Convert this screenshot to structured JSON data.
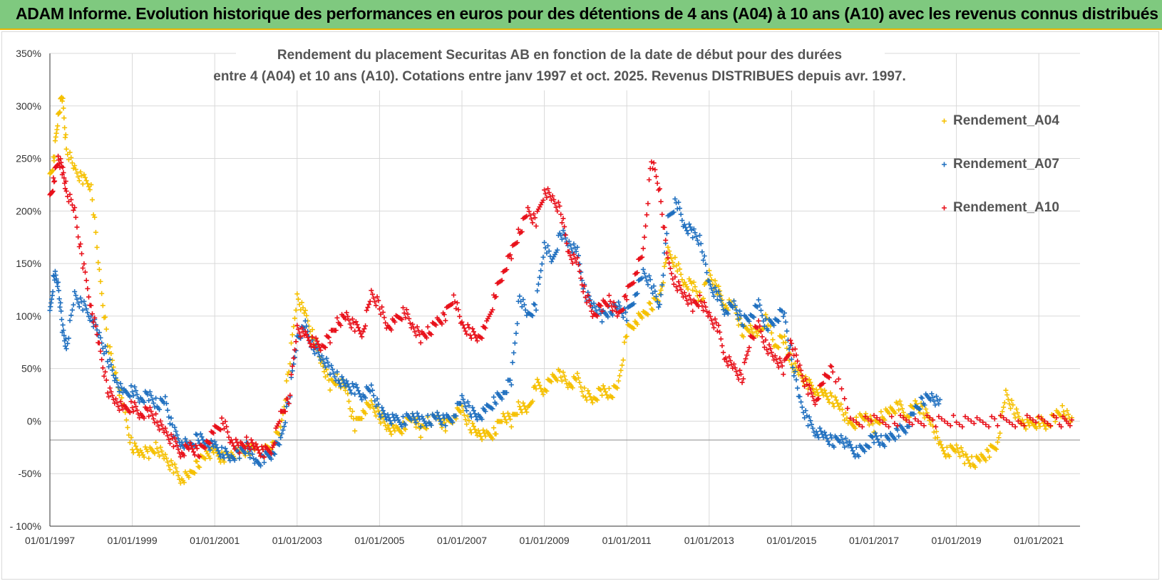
{
  "banner": {
    "title": "ADAM Informe. Evolution historique des performances en euros pour des détentions de 4 ans (A04) à 10 ans (A10) avec les revenus connus distribués"
  },
  "chart_data": {
    "type": "scatter",
    "title_lines": [
      "Rendement du placement Securitas AB en fonction de la date de début pour des durées",
      "entre 4 (A04) et 10 ans (A10). Cotations entre janv 1997 et oct. 2025. Revenus DISTRIBUES depuis avr. 1997."
    ],
    "xlabel": "",
    "ylabel": "",
    "x_ticks": [
      "01/01/1997",
      "01/01/1999",
      "01/01/2001",
      "01/01/2003",
      "01/01/2005",
      "01/01/2007",
      "01/01/2009",
      "01/01/2011",
      "01/01/2013",
      "01/01/2015",
      "01/01/2017",
      "01/01/2019",
      "01/01/2021"
    ],
    "y_ticks": [
      "350%",
      "300%",
      "250%",
      "200%",
      "150%",
      "100%",
      "50%",
      "0%",
      "-50%",
      "- 100%"
    ],
    "xlim": [
      1997.0,
      2022.0
    ],
    "ylim": [
      -100,
      350
    ],
    "legend_position": "right",
    "marker": "+",
    "series": [
      {
        "name": "Rendement_A04",
        "color": "#f5c000",
        "x": [
          1997.0,
          1997.1,
          1997.2,
          1997.3,
          1997.4,
          1997.6,
          1997.8,
          1998.0,
          1998.2,
          1998.4,
          1998.6,
          1998.8,
          1999.0,
          1999.2,
          1999.4,
          1999.6,
          1999.8,
          2000.0,
          2000.2,
          2000.4,
          2000.6,
          2000.8,
          2001.0,
          2001.2,
          2001.4,
          2001.6,
          2001.8,
          2002.0,
          2002.2,
          2002.4,
          2002.6,
          2002.8,
          2003.0,
          2003.2,
          2003.4,
          2003.6,
          2003.8,
          2004.0,
          2004.2,
          2004.4,
          2004.6,
          2004.8,
          2005.0,
          2005.2,
          2005.4,
          2005.6,
          2005.8,
          2006.0,
          2006.2,
          2006.4,
          2006.6,
          2006.8,
          2007.0,
          2007.2,
          2007.4,
          2007.6,
          2007.8,
          2008.0,
          2008.2,
          2008.4,
          2008.6,
          2008.8,
          2009.0,
          2009.2,
          2009.4,
          2009.6,
          2009.8,
          2010.0,
          2010.2,
          2010.4,
          2010.6,
          2010.8,
          2011.0,
          2011.2,
          2011.4,
          2011.6,
          2011.8,
          2012.0,
          2012.2,
          2012.4,
          2012.6,
          2012.8,
          2013.0,
          2013.2,
          2013.4,
          2013.6,
          2013.8,
          2014.0,
          2014.2,
          2014.4,
          2014.6,
          2014.8,
          2015.0,
          2015.2,
          2015.4,
          2015.6,
          2015.8,
          2016.0,
          2016.2,
          2016.4,
          2016.6,
          2016.8,
          2017.0,
          2017.2,
          2017.4,
          2017.6,
          2017.8,
          2018.0,
          2018.2,
          2018.4,
          2018.6,
          2018.8,
          2019.0,
          2019.2,
          2019.4,
          2019.6,
          2019.8,
          2020.0,
          2020.2,
          2020.4,
          2020.6,
          2020.8,
          2021.0,
          2021.2,
          2021.4,
          2021.6,
          2021.8
        ],
        "y": [
          230,
          250,
          290,
          310,
          260,
          240,
          230,
          225,
          140,
          75,
          45,
          10,
          -25,
          -30,
          -30,
          -25,
          -35,
          -45,
          -55,
          -52,
          -40,
          -30,
          -30,
          -35,
          -32,
          -30,
          -28,
          -25,
          -30,
          -20,
          -10,
          50,
          120,
          100,
          80,
          55,
          35,
          40,
          30,
          -5,
          10,
          15,
          5,
          -5,
          -10,
          -5,
          5,
          -10,
          0,
          5,
          -5,
          5,
          10,
          -5,
          -10,
          -15,
          -10,
          5,
          0,
          15,
          10,
          35,
          30,
          40,
          45,
          35,
          40,
          25,
          20,
          30,
          25,
          35,
          85,
          95,
          100,
          110,
          120,
          160,
          150,
          130,
          130,
          115,
          140,
          125,
          110,
          110,
          85,
          90,
          80,
          100,
          70,
          80,
          55,
          45,
          35,
          30,
          25,
          20,
          15,
          -5,
          0,
          5,
          -5,
          5,
          10,
          15,
          5,
          15,
          10,
          0,
          -25,
          -30,
          -25,
          -35,
          -40,
          -35,
          -30,
          -20,
          25,
          10,
          0,
          -5,
          0,
          -5,
          5,
          10,
          0
        ]
      },
      {
        "name": "Rendement_A07",
        "color": "#1f6fbf",
        "x": [
          1997.0,
          1997.1,
          1997.2,
          1997.3,
          1997.4,
          1997.6,
          1997.8,
          1998.0,
          1998.2,
          1998.4,
          1998.6,
          1998.8,
          1999.0,
          1999.2,
          1999.4,
          1999.6,
          1999.8,
          2000.0,
          2000.2,
          2000.4,
          2000.6,
          2000.8,
          2001.0,
          2001.2,
          2001.4,
          2001.6,
          2001.8,
          2002.0,
          2002.2,
          2002.4,
          2002.6,
          2002.8,
          2003.0,
          2003.2,
          2003.4,
          2003.6,
          2003.8,
          2004.0,
          2004.2,
          2004.4,
          2004.6,
          2004.8,
          2005.0,
          2005.2,
          2005.4,
          2005.6,
          2005.8,
          2006.0,
          2006.2,
          2006.4,
          2006.6,
          2006.8,
          2007.0,
          2007.2,
          2007.4,
          2007.6,
          2007.8,
          2008.0,
          2008.2,
          2008.4,
          2008.6,
          2008.8,
          2009.0,
          2009.2,
          2009.4,
          2009.6,
          2009.8,
          2010.0,
          2010.2,
          2010.4,
          2010.6,
          2010.8,
          2011.0,
          2011.2,
          2011.4,
          2011.6,
          2011.8,
          2012.0,
          2012.2,
          2012.4,
          2012.6,
          2012.8,
          2013.0,
          2013.2,
          2013.4,
          2013.6,
          2013.8,
          2014.0,
          2014.2,
          2014.4,
          2014.6,
          2014.8,
          2015.0,
          2015.2,
          2015.4,
          2015.6,
          2015.8,
          2016.0,
          2016.2,
          2016.4,
          2016.6,
          2016.8,
          2017.0,
          2017.2,
          2017.4,
          2017.6,
          2017.8,
          2018.0,
          2018.2,
          2018.4,
          2018.6
        ],
        "y": [
          100,
          140,
          130,
          90,
          70,
          120,
          110,
          100,
          80,
          60,
          40,
          25,
          30,
          20,
          25,
          15,
          20,
          -10,
          -20,
          -25,
          -15,
          -20,
          -25,
          -30,
          -35,
          -30,
          -25,
          -40,
          -35,
          -30,
          -20,
          20,
          80,
          90,
          70,
          60,
          50,
          40,
          35,
          30,
          25,
          30,
          10,
          5,
          0,
          0,
          5,
          0,
          0,
          5,
          0,
          5,
          20,
          10,
          5,
          10,
          20,
          25,
          40,
          120,
          100,
          110,
          170,
          150,
          180,
          170,
          160,
          120,
          110,
          100,
          105,
          110,
          100,
          120,
          140,
          130,
          110,
          190,
          210,
          185,
          180,
          170,
          130,
          120,
          105,
          110,
          95,
          100,
          110,
          90,
          95,
          105,
          60,
          20,
          0,
          -10,
          -15,
          -20,
          -15,
          -25,
          -30,
          -25,
          -15,
          -20,
          -15,
          -10,
          -5,
          10,
          20,
          25,
          15
        ]
      },
      {
        "name": "Rendement_A10",
        "color": "#e8101a",
        "x": [
          1997.0,
          1997.1,
          1997.2,
          1997.3,
          1997.4,
          1997.6,
          1997.8,
          1998.0,
          1998.2,
          1998.4,
          1998.6,
          1998.8,
          1999.0,
          1999.2,
          1999.4,
          1999.6,
          1999.8,
          2000.0,
          2000.2,
          2000.4,
          2000.6,
          2000.8,
          2001.0,
          2001.2,
          2001.4,
          2001.6,
          2001.8,
          2002.0,
          2002.2,
          2002.4,
          2002.6,
          2002.8,
          2003.0,
          2003.2,
          2003.4,
          2003.6,
          2003.8,
          2004.0,
          2004.2,
          2004.4,
          2004.6,
          2004.8,
          2005.0,
          2005.2,
          2005.4,
          2005.6,
          2005.8,
          2006.0,
          2006.2,
          2006.4,
          2006.6,
          2006.8,
          2007.0,
          2007.2,
          2007.4,
          2007.6,
          2007.8,
          2008.0,
          2008.2,
          2008.4,
          2008.6,
          2008.8,
          2009.0,
          2009.2,
          2009.4,
          2009.6,
          2009.8,
          2010.0,
          2010.2,
          2010.4,
          2010.6,
          2010.8,
          2011.0,
          2011.2,
          2011.4,
          2011.6,
          2011.8,
          2012.0,
          2012.2,
          2012.4,
          2012.6,
          2012.8,
          2013.0,
          2013.2,
          2013.4,
          2013.6,
          2013.8,
          2014.0,
          2014.2,
          2014.4,
          2014.6,
          2014.8,
          2015.0,
          2015.2,
          2015.4,
          2015.6,
          2015.8,
          2016.0,
          2016.5,
          2017.0,
          2017.5,
          2018.0,
          2018.5,
          2019.0,
          2019.5,
          2020.0,
          2020.5,
          2021.0,
          2021.5,
          2021.8
        ],
        "y": [
          210,
          230,
          250,
          240,
          220,
          200,
          150,
          110,
          70,
          30,
          20,
          10,
          15,
          5,
          10,
          0,
          -10,
          -20,
          -30,
          -25,
          -30,
          -20,
          -10,
          0,
          -20,
          -25,
          -20,
          -25,
          -30,
          -25,
          5,
          20,
          90,
          80,
          75,
          70,
          80,
          95,
          100,
          90,
          85,
          120,
          110,
          90,
          95,
          105,
          90,
          80,
          85,
          95,
          100,
          120,
          90,
          85,
          80,
          90,
          120,
          140,
          160,
          180,
          200,
          190,
          220,
          210,
          200,
          160,
          150,
          120,
          100,
          110,
          115,
          100,
          120,
          140,
          160,
          250,
          220,
          150,
          130,
          120,
          110,
          115,
          100,
          90,
          60,
          50,
          40,
          80,
          90,
          70,
          60,
          50,
          75,
          50,
          30,
          20,
          40,
          50,
          0,
          0,
          0,
          0,
          0,
          0,
          0,
          0,
          0,
          0,
          0,
          0
        ]
      }
    ]
  }
}
